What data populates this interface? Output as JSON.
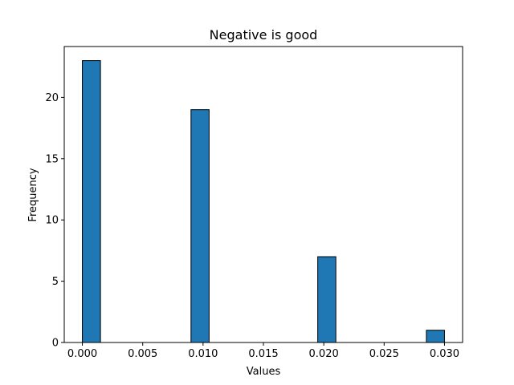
{
  "chart_data": {
    "type": "bar",
    "title": "Negative is good",
    "xlabel": "Values",
    "ylabel": "Frequency",
    "xlim": [
      -0.0015,
      0.0315
    ],
    "ylim": [
      0,
      24.15
    ],
    "grid": false,
    "bar_color": "#1f77b4",
    "edge_color": "#000000",
    "bin_width": 0.0015,
    "bins": [
      {
        "x0": 0.0,
        "x1": 0.0015,
        "value": 23
      },
      {
        "x0": 0.009,
        "x1": 0.0105,
        "value": 19
      },
      {
        "x0": 0.0195,
        "x1": 0.021,
        "value": 7
      },
      {
        "x0": 0.0285,
        "x1": 0.03,
        "value": 1
      }
    ],
    "xticks": [
      {
        "value": 0.0,
        "label": "0.000"
      },
      {
        "value": 0.005,
        "label": "0.005"
      },
      {
        "value": 0.01,
        "label": "0.010"
      },
      {
        "value": 0.015,
        "label": "0.015"
      },
      {
        "value": 0.02,
        "label": "0.020"
      },
      {
        "value": 0.025,
        "label": "0.025"
      },
      {
        "value": 0.03,
        "label": "0.030"
      }
    ],
    "yticks": [
      {
        "value": 0,
        "label": "0"
      },
      {
        "value": 5,
        "label": "5"
      },
      {
        "value": 10,
        "label": "10"
      },
      {
        "value": 15,
        "label": "15"
      },
      {
        "value": 20,
        "label": "20"
      }
    ]
  }
}
